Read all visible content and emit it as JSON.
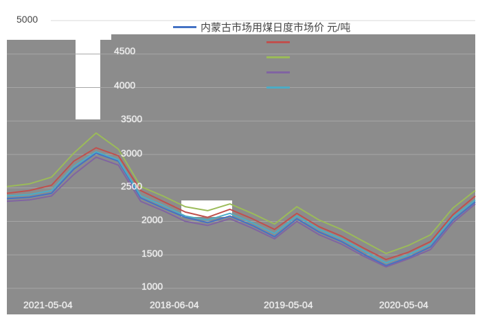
{
  "chart_data": {
    "type": "line",
    "title": "",
    "xlabel": "",
    "ylabel": "",
    "ylim": [
      1000,
      5000
    ],
    "y_ticks": [
      1000,
      1500,
      2000,
      2500,
      3000,
      3500,
      4000,
      4500,
      5000
    ],
    "x_tick_labels": [
      "2021-05-04",
      "2018-06-04",
      "2019-05-04",
      "2020-05-04"
    ],
    "legend_placement": "top-right",
    "grid": true,
    "series": [
      {
        "name": "内蒙古市场用煤日度市场价 元/吨",
        "color": "#4472c4",
        "values": [
          2340,
          2360,
          2420,
          2780,
          3020,
          2900,
          2350,
          2200,
          2060,
          1980,
          2080,
          1940,
          1770,
          2040,
          1840,
          1700,
          1510,
          1340,
          1460,
          1620,
          2020,
          2290
        ]
      },
      {
        "name": "",
        "color": "#c0504d",
        "values": [
          2420,
          2460,
          2540,
          2900,
          3100,
          2980,
          2460,
          2300,
          2140,
          2060,
          2180,
          2040,
          1880,
          2120,
          1920,
          1780,
          1600,
          1430,
          1540,
          1700,
          2100,
          2380
        ]
      },
      {
        "name": "",
        "color": "#9bbb59",
        "values": [
          2520,
          2560,
          2660,
          3020,
          3320,
          3080,
          2520,
          2380,
          2220,
          2160,
          2260,
          2120,
          1960,
          2220,
          2020,
          1880,
          1700,
          1520,
          1640,
          1800,
          2200,
          2460
        ]
      },
      {
        "name": "",
        "color": "#8064a2",
        "values": [
          2300,
          2320,
          2380,
          2700,
          2960,
          2840,
          2300,
          2160,
          2000,
          1940,
          2040,
          1900,
          1740,
          2000,
          1800,
          1660,
          1480,
          1320,
          1440,
          1580,
          1980,
          2260
        ]
      },
      {
        "name": "",
        "color": "#4bacc6",
        "values": [
          2380,
          2400,
          2460,
          2820,
          3040,
          2920,
          2380,
          2240,
          2080,
          2020,
          2120,
          1980,
          1820,
          2080,
          1880,
          1740,
          1560,
          1380,
          1500,
          1660,
          2060,
          2320
        ]
      }
    ]
  }
}
